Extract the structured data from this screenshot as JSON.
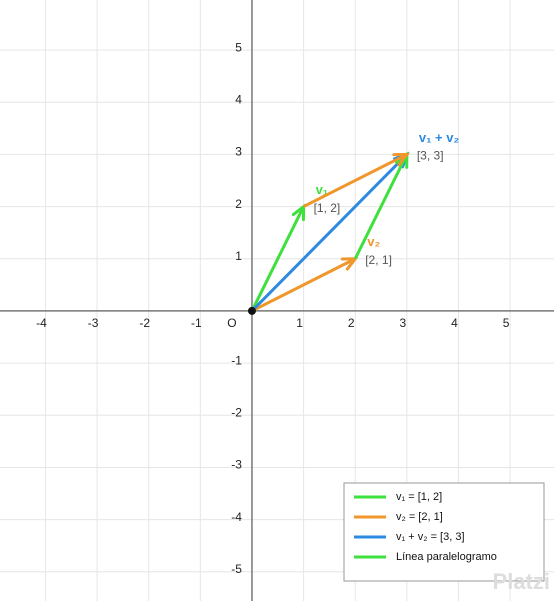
{
  "chart_data": {
    "type": "vector",
    "xlim": [
      -4.88,
      5.85
    ],
    "ylim": [
      -5.56,
      5.96
    ],
    "xticks": [
      -4,
      -3,
      -2,
      -1,
      1,
      2,
      3,
      4,
      5
    ],
    "yticks": [
      -5,
      -4,
      -3,
      -2,
      -1,
      1,
      2,
      3,
      4,
      5
    ],
    "origin_label": "O",
    "grid": true,
    "legend": "lower right",
    "series": [
      {
        "name": "v₁ = [1, 2]",
        "label": "v₁",
        "coord_label": "[1, 2]",
        "color": "#3ee03e",
        "x": [
          0,
          1
        ],
        "y": [
          0,
          2
        ]
      },
      {
        "name": "v₂ = [2, 1]",
        "label": "v₂",
        "coord_label": "[2, 1]",
        "color": "#f0962a",
        "x": [
          0,
          2
        ],
        "y": [
          0,
          1
        ]
      },
      {
        "name": "v₁ + v₂ = [3, 3]",
        "label": "v₁ + v₂",
        "coord_label": "[3, 3]",
        "color": "#2d8ae0",
        "x": [
          0,
          3
        ],
        "y": [
          0,
          3
        ]
      },
      {
        "name": "Línea paralelogramo",
        "color": "#3ee03e",
        "x": [
          2,
          3
        ],
        "y": [
          1,
          3
        ]
      },
      {
        "color": "#f0962a",
        "x": [
          1,
          3
        ],
        "y": [
          2,
          3
        ]
      }
    ],
    "watermark": "Platzi"
  }
}
